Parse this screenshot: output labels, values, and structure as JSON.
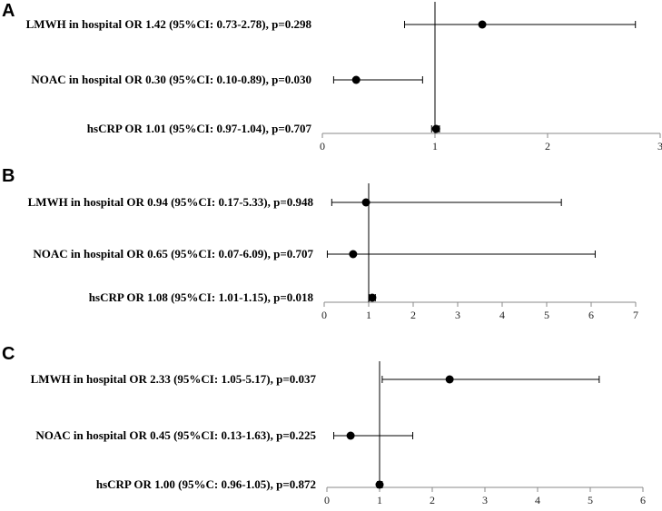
{
  "chart_data": [
    {
      "type": "forest",
      "panel": "A",
      "ref_line": 1,
      "xlim": [
        0,
        3
      ],
      "xticks": [
        0,
        1,
        2,
        3
      ],
      "rows": [
        {
          "label": "LMWH in hospital OR 1.42 (95%CI: 0.73-2.78), p=0.298",
          "or": 1.42,
          "ci": [
            0.73,
            2.78
          ]
        },
        {
          "label": "NOAC in hospital OR 0.30 (95%CI: 0.10-0.89), p=0.030",
          "or": 0.3,
          "ci": [
            0.1,
            0.89
          ]
        },
        {
          "label": "hsCRP OR 1.01 (95%CI: 0.97-1.04), p=0.707",
          "or": 1.01,
          "ci": [
            0.97,
            1.04
          ]
        }
      ]
    },
    {
      "type": "forest",
      "panel": "B",
      "ref_line": 1,
      "xlim": [
        0,
        7
      ],
      "xticks": [
        0,
        1,
        2,
        3,
        4,
        5,
        6,
        7
      ],
      "rows": [
        {
          "label": "LMWH in hospital OR 0.94 (95%CI: 0.17-5.33), p=0.948",
          "or": 0.94,
          "ci": [
            0.17,
            5.33
          ]
        },
        {
          "label": "NOAC in hospital OR 0.65 (95%CI: 0.07-6.09), p=0.707",
          "or": 0.65,
          "ci": [
            0.07,
            6.09
          ]
        },
        {
          "label": "hsCRP OR 1.08 (95%CI: 1.01-1.15), p=0.018",
          "or": 1.08,
          "ci": [
            1.01,
            1.15
          ]
        }
      ]
    },
    {
      "type": "forest",
      "panel": "C",
      "ref_line": 1,
      "xlim": [
        0,
        6
      ],
      "xticks": [
        0,
        1,
        2,
        3,
        4,
        5,
        6
      ],
      "rows": [
        {
          "label": "LMWH in hospital OR 2.33 (95%CI: 1.05-5.17), p=0.037",
          "or": 2.33,
          "ci": [
            1.05,
            5.17
          ]
        },
        {
          "label": "NOAC in hospital OR 0.45 (95%CI: 0.13-1.63), p=0.225",
          "or": 0.45,
          "ci": [
            0.13,
            1.63
          ]
        },
        {
          "label": "hsCRP OR 1.00 (95%C: 0.96-1.05), p=0.872",
          "or": 1.0,
          "ci": [
            0.96,
            1.05
          ]
        }
      ]
    }
  ]
}
